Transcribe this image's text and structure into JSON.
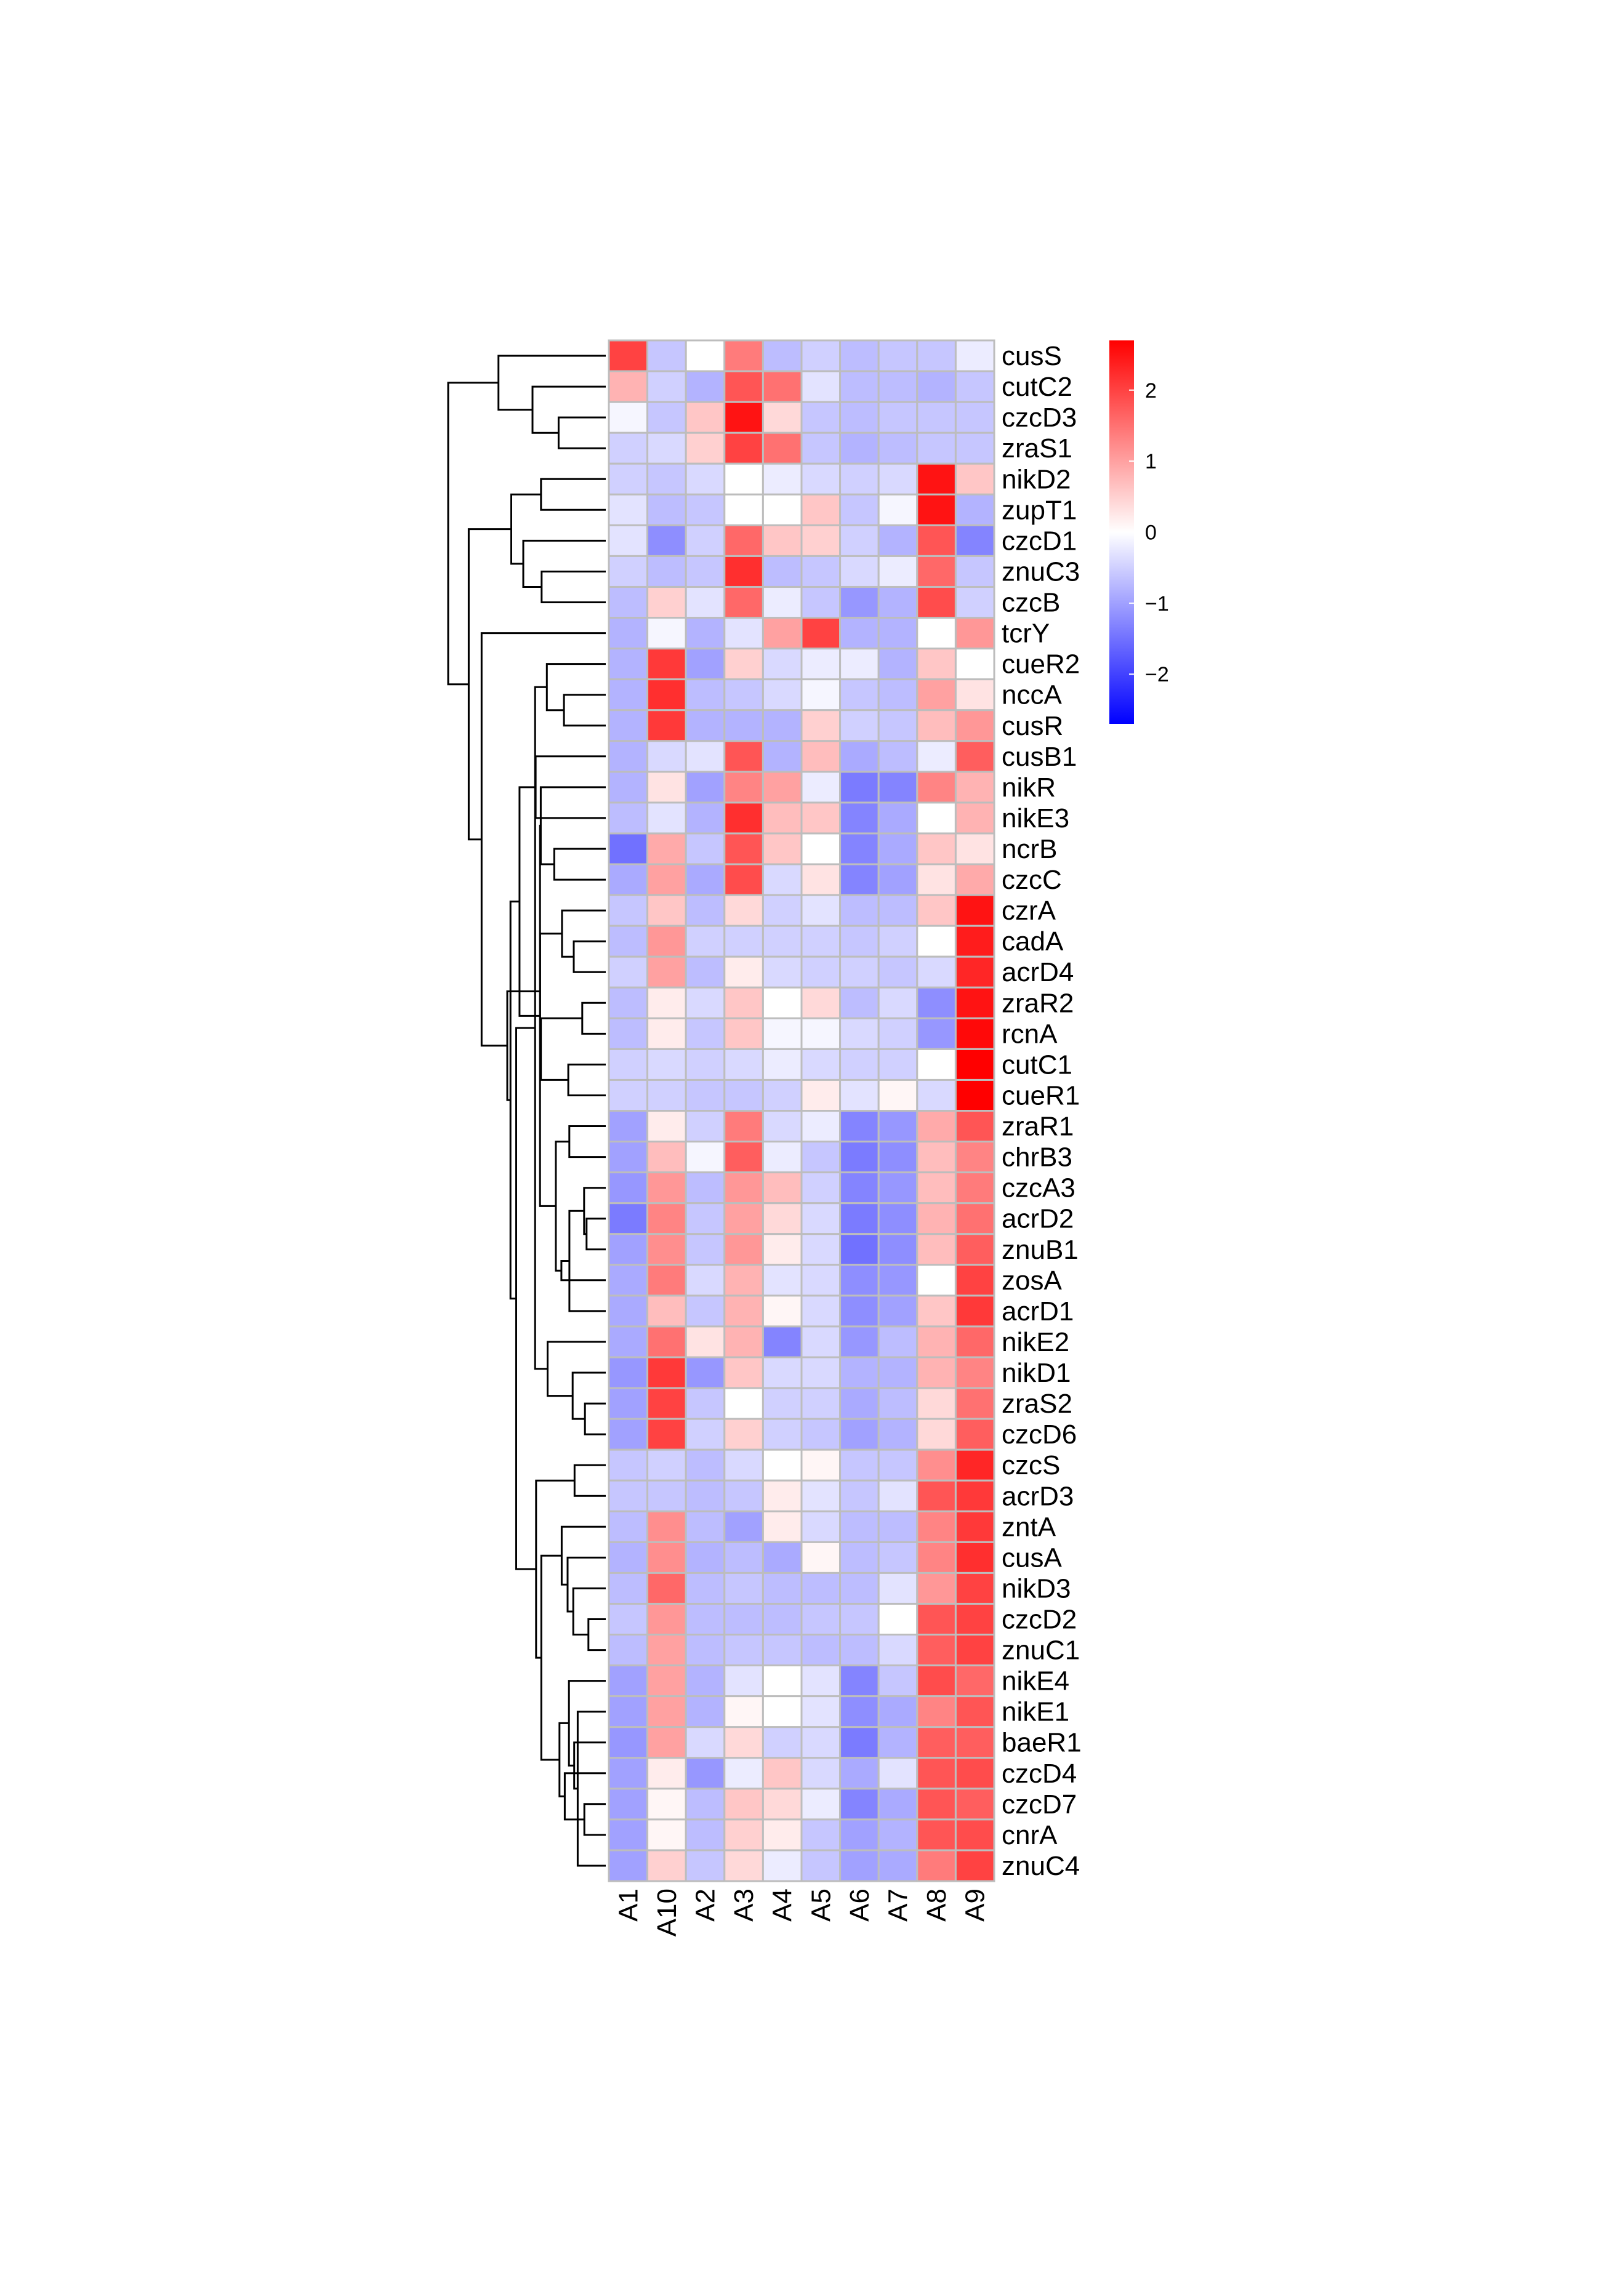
{
  "chart_data": {
    "type": "heatmap",
    "columns": [
      "A1",
      "A10",
      "A2",
      "A3",
      "A4",
      "A5",
      "A6",
      "A7",
      "A8",
      "A9"
    ],
    "rows": [
      "cusS",
      "cutC2",
      "czcD3",
      "zraS1",
      "nikD2",
      "zupT1",
      "czcD1",
      "znuC3",
      "czcB",
      "tcrY",
      "cueR2",
      "nccA",
      "cusR",
      "cusB1",
      "nikR",
      "nikE3",
      "ncrB",
      "czcC",
      "czrA",
      "cadA",
      "acrD4",
      "zraR2",
      "rcnA",
      "cutC1",
      "cueR1",
      "zraR1",
      "chrB3",
      "czcA3",
      "acrD2",
      "znuB1",
      "zosA",
      "acrD1",
      "nikE2",
      "nikD1",
      "zraS2",
      "czcD6",
      "czcS",
      "acrD3",
      "zntA",
      "cusA",
      "nikD3",
      "czcD2",
      "znuC1",
      "nikE4",
      "nikE1",
      "baeR1",
      "czcD4",
      "czcD7",
      "cnrA",
      "znuC4"
    ],
    "values": [
      [
        2.0,
        -0.6,
        0.0,
        1.4,
        -0.7,
        -0.5,
        -0.7,
        -0.6,
        -0.6,
        -0.2
      ],
      [
        0.8,
        -0.5,
        -0.8,
        1.8,
        1.5,
        -0.3,
        -0.7,
        -0.7,
        -0.8,
        -0.6
      ],
      [
        -0.1,
        -0.6,
        0.6,
        2.5,
        0.4,
        -0.6,
        -0.7,
        -0.6,
        -0.6,
        -0.6
      ],
      [
        -0.5,
        -0.4,
        0.5,
        2.0,
        1.5,
        -0.6,
        -0.8,
        -0.7,
        -0.6,
        -0.6
      ],
      [
        -0.5,
        -0.6,
        -0.4,
        0.0,
        -0.2,
        -0.4,
        -0.5,
        -0.4,
        2.5,
        0.6
      ],
      [
        -0.3,
        -0.7,
        -0.6,
        0.0,
        0.0,
        0.6,
        -0.6,
        -0.1,
        2.5,
        -0.8
      ],
      [
        -0.3,
        -1.2,
        -0.5,
        1.6,
        0.6,
        0.5,
        -0.5,
        -0.8,
        1.8,
        -1.3
      ],
      [
        -0.5,
        -0.7,
        -0.6,
        2.2,
        -0.7,
        -0.6,
        -0.4,
        -0.2,
        1.6,
        -0.6
      ],
      [
        -0.7,
        0.5,
        -0.3,
        1.6,
        -0.2,
        -0.6,
        -1.1,
        -0.8,
        1.9,
        -0.5
      ],
      [
        -0.8,
        -0.1,
        -0.8,
        -0.3,
        1.0,
        2.0,
        -0.8,
        -0.8,
        0.0,
        1.1
      ],
      [
        -0.8,
        2.1,
        -1.0,
        0.5,
        -0.4,
        -0.2,
        -0.2,
        -0.8,
        0.6,
        0.0
      ],
      [
        -0.8,
        2.2,
        -0.7,
        -0.6,
        -0.4,
        -0.1,
        -0.6,
        -0.7,
        1.0,
        0.3
      ],
      [
        -0.8,
        2.1,
        -0.8,
        -0.8,
        -0.8,
        0.5,
        -0.5,
        -0.6,
        0.7,
        1.1
      ],
      [
        -0.8,
        -0.4,
        -0.3,
        1.8,
        -0.8,
        0.7,
        -0.9,
        -0.7,
        -0.2,
        1.7
      ],
      [
        -0.8,
        0.3,
        -1.0,
        1.3,
        1.0,
        -0.2,
        -1.4,
        -1.3,
        1.3,
        0.8
      ],
      [
        -0.7,
        -0.3,
        -0.8,
        2.2,
        0.7,
        0.6,
        -1.3,
        -0.9,
        0.0,
        0.8
      ],
      [
        -1.5,
        0.9,
        -0.6,
        1.8,
        0.6,
        0.0,
        -1.3,
        -0.9,
        0.6,
        0.3
      ],
      [
        -0.9,
        1.0,
        -0.9,
        1.9,
        -0.4,
        0.3,
        -1.3,
        -1.0,
        0.3,
        0.9
      ],
      [
        -0.6,
        0.6,
        -0.7,
        0.4,
        -0.5,
        -0.3,
        -0.7,
        -0.7,
        0.6,
        2.5
      ],
      [
        -0.7,
        1.1,
        -0.5,
        -0.5,
        -0.5,
        -0.5,
        -0.6,
        -0.5,
        0.0,
        2.4
      ],
      [
        -0.5,
        1.0,
        -0.7,
        0.2,
        -0.4,
        -0.5,
        -0.5,
        -0.6,
        -0.4,
        2.3
      ],
      [
        -0.7,
        0.2,
        -0.4,
        0.6,
        0.0,
        0.4,
        -0.7,
        -0.4,
        -1.2,
        2.5
      ],
      [
        -0.7,
        0.2,
        -0.6,
        0.6,
        -0.1,
        -0.1,
        -0.4,
        -0.5,
        -1.1,
        2.6
      ],
      [
        -0.5,
        -0.4,
        -0.5,
        -0.4,
        -0.2,
        -0.4,
        -0.5,
        -0.5,
        0.0,
        2.7
      ],
      [
        -0.5,
        -0.5,
        -0.6,
        -0.6,
        -0.5,
        0.2,
        -0.3,
        0.1,
        -0.4,
        2.7
      ],
      [
        -1.0,
        0.2,
        -0.5,
        1.4,
        -0.4,
        -0.2,
        -1.3,
        -1.1,
        0.9,
        1.8
      ],
      [
        -1.0,
        0.7,
        -0.1,
        1.7,
        -0.2,
        -0.6,
        -1.4,
        -1.2,
        0.7,
        1.3
      ],
      [
        -1.1,
        1.1,
        -0.7,
        1.1,
        0.7,
        -0.5,
        -1.3,
        -1.1,
        0.7,
        1.4
      ],
      [
        -1.4,
        1.3,
        -0.6,
        1.0,
        0.4,
        -0.4,
        -1.4,
        -1.2,
        0.8,
        1.5
      ],
      [
        -1.0,
        1.2,
        -0.6,
        1.1,
        0.2,
        -0.4,
        -1.5,
        -1.2,
        0.7,
        1.7
      ],
      [
        -0.9,
        1.4,
        -0.4,
        0.8,
        -0.3,
        -0.4,
        -1.2,
        -1.1,
        0.0,
        2.0
      ],
      [
        -0.9,
        0.7,
        -0.6,
        0.8,
        0.1,
        -0.4,
        -1.2,
        -1.0,
        0.6,
        2.1
      ],
      [
        -0.9,
        1.5,
        0.3,
        0.8,
        -1.3,
        -0.4,
        -1.1,
        -0.7,
        0.8,
        1.6
      ],
      [
        -1.1,
        2.1,
        -1.1,
        0.6,
        -0.4,
        -0.4,
        -0.8,
        -0.8,
        0.8,
        1.3
      ],
      [
        -1.0,
        2.0,
        -0.6,
        0.0,
        -0.5,
        -0.5,
        -0.9,
        -0.7,
        0.4,
        1.5
      ],
      [
        -1.0,
        2.0,
        -0.5,
        0.5,
        -0.5,
        -0.6,
        -1.0,
        -0.8,
        0.4,
        1.7
      ],
      [
        -0.6,
        -0.5,
        -0.7,
        -0.4,
        0.0,
        0.1,
        -0.6,
        -0.6,
        1.2,
        2.3
      ],
      [
        -0.6,
        -0.6,
        -0.7,
        -0.6,
        0.2,
        -0.3,
        -0.6,
        -0.3,
        1.8,
        2.1
      ],
      [
        -0.7,
        1.2,
        -0.7,
        -1.0,
        0.2,
        -0.4,
        -0.7,
        -0.7,
        1.3,
        2.1
      ],
      [
        -0.8,
        1.2,
        -0.8,
        -0.7,
        -0.9,
        0.1,
        -0.7,
        -0.6,
        1.3,
        2.2
      ],
      [
        -0.7,
        1.6,
        -0.7,
        -0.6,
        -0.7,
        -0.7,
        -0.7,
        -0.3,
        1.1,
        2.0
      ],
      [
        -0.6,
        1.1,
        -0.7,
        -0.7,
        -0.7,
        -0.6,
        -0.6,
        0.0,
        1.8,
        2.0
      ],
      [
        -0.7,
        1.0,
        -0.7,
        -0.6,
        -0.6,
        -0.7,
        -0.7,
        -0.4,
        1.7,
        2.0
      ],
      [
        -1.0,
        1.0,
        -0.8,
        -0.3,
        0.0,
        -0.3,
        -1.3,
        -0.6,
        1.9,
        1.6
      ],
      [
        -1.0,
        1.0,
        -0.8,
        0.1,
        0.0,
        -0.3,
        -1.2,
        -0.9,
        1.3,
        1.8
      ],
      [
        -1.1,
        1.0,
        -0.4,
        0.4,
        -0.5,
        -0.4,
        -1.4,
        -0.8,
        1.7,
        1.7
      ],
      [
        -1.0,
        0.2,
        -1.1,
        -0.2,
        0.6,
        -0.4,
        -0.9,
        -0.3,
        1.8,
        1.9
      ],
      [
        -1.0,
        0.1,
        -0.7,
        0.6,
        0.4,
        -0.2,
        -1.3,
        -0.9,
        1.8,
        1.7
      ],
      [
        -1.0,
        0.1,
        -0.7,
        0.5,
        0.2,
        -0.6,
        -1.0,
        -0.8,
        1.8,
        1.9
      ],
      [
        -1.0,
        0.5,
        -0.6,
        0.4,
        -0.2,
        -0.6,
        -1.0,
        -0.9,
        1.4,
        2.0
      ]
    ],
    "color_scale": {
      "low": "#0000ff",
      "mid": "#ffffff",
      "high": "#ff0000",
      "min": -2.7,
      "max": 2.7
    },
    "legend_ticks": [
      2,
      1,
      0,
      -1,
      -2
    ],
    "legend_placement": "right",
    "row_dendrogram": true,
    "title": "",
    "xlabel": "",
    "ylabel": ""
  }
}
